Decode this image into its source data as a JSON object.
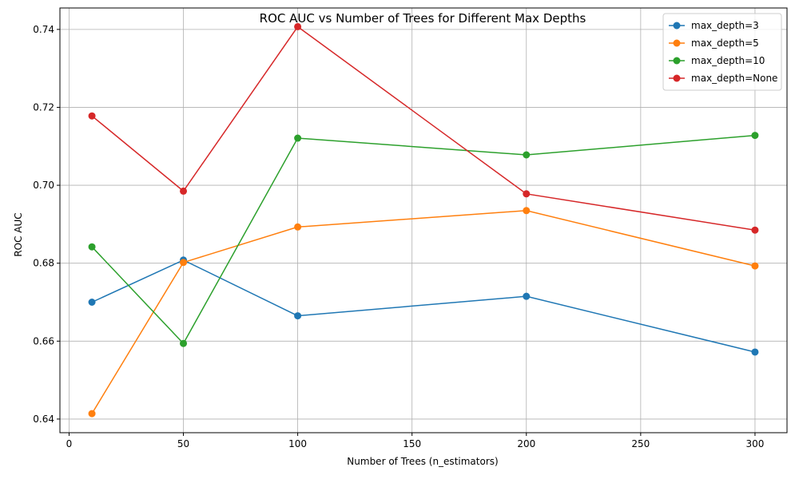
{
  "chart_data": {
    "type": "line",
    "title": "ROC AUC vs Number of Trees for Different Max Depths",
    "xlabel": "Number of Trees (n_estimators)",
    "ylabel": "ROC AUC",
    "x": [
      10,
      50,
      100,
      200,
      300
    ],
    "xlim": [
      -4,
      314
    ],
    "ylim": [
      0.6365,
      0.7455
    ],
    "xticks": [
      0,
      50,
      100,
      150,
      200,
      250,
      300
    ],
    "yticks": [
      0.64,
      0.66,
      0.68,
      0.7,
      0.72,
      0.74
    ],
    "ytick_labels": [
      "0.64",
      "0.66",
      "0.68",
      "0.70",
      "0.72",
      "0.74"
    ],
    "grid": true,
    "legend_position": "top-right",
    "series": [
      {
        "name": "max_depth=3",
        "color": "#1f77b4",
        "values": [
          0.67,
          0.6808,
          0.6665,
          0.6715,
          0.6572
        ]
      },
      {
        "name": "max_depth=5",
        "color": "#ff7f0e",
        "values": [
          0.6414,
          0.6802,
          0.6893,
          0.6935,
          0.6793
        ]
      },
      {
        "name": "max_depth=10",
        "color": "#2ca02c",
        "values": [
          0.6842,
          0.6594,
          0.7121,
          0.7078,
          0.7128
        ]
      },
      {
        "name": "max_depth=None",
        "color": "#d62728",
        "values": [
          0.7178,
          0.6985,
          0.7407,
          0.6978,
          0.6885
        ]
      }
    ]
  }
}
